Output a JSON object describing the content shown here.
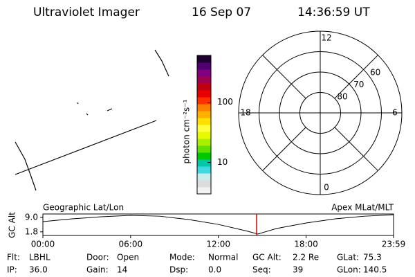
{
  "header": {
    "title": "Ultraviolet Imager",
    "date": "16 Sep 07",
    "time": "14:36:59 UT"
  },
  "colorbar": {
    "label": "photon cm⁻²s⁻¹",
    "log_scale": true,
    "lim": [
      3,
      600
    ],
    "ticks": [
      10,
      100
    ],
    "colors": [
      "#f2f2f2",
      "#dcdcdc",
      "#c8ecec",
      "#40d8e0",
      "#00c8a8",
      "#00c800",
      "#60e000",
      "#a8f000",
      "#e8f800",
      "#ffff40",
      "#ffe000",
      "#ffb000",
      "#ff8000",
      "#ff3000",
      "#e80000",
      "#c00010",
      "#a00050",
      "#800080",
      "#500070",
      "#200030"
    ]
  },
  "polar": {
    "rlim": [
      90,
      50
    ],
    "rings": [
      80,
      70,
      60,
      50
    ],
    "ring_labels": [
      {
        "value": 80,
        "label": "80"
      },
      {
        "value": 70,
        "label": "70"
      },
      {
        "value": 60,
        "label": "60"
      }
    ],
    "hours": [
      12,
      6,
      0,
      18
    ],
    "spokes": [
      0,
      3,
      6,
      9,
      12,
      15,
      18,
      21
    ]
  },
  "timeline": {
    "left_title": "Geographic Lat/Lon",
    "right_title": "Apex MLat/MLT",
    "ylabel": "GC Alt",
    "ylim": [
      0,
      10.7
    ],
    "yticks": [
      {
        "value": 9,
        "label": "9.0"
      },
      {
        "value": 1.8,
        "label": "1.8"
      }
    ],
    "xlim": [
      0,
      23.983
    ],
    "xticks": [
      {
        "value": 0,
        "label": "00:00"
      },
      {
        "value": 6,
        "label": "06:00"
      },
      {
        "value": 12,
        "label": "12:00"
      },
      {
        "value": 18,
        "label": "18:00"
      },
      {
        "value": 23.983,
        "label": "23:59"
      }
    ],
    "x": [
      0,
      2,
      4,
      6,
      8,
      10,
      12,
      14,
      14.7,
      16,
      18,
      20,
      22,
      23.983
    ],
    "values": [
      6.9,
      8.3,
      9.3,
      10,
      9.6,
      7.9,
      5.5,
      2.1,
      0.7,
      3.5,
      6.2,
      8.3,
      9.6,
      10.3
    ],
    "marker": 14.616,
    "marker_color": "#dd0000"
  },
  "footer": {
    "rows": [
      [
        [
          "Flt:",
          "LBHL"
        ],
        [
          "Door:",
          "Open"
        ],
        [
          "Mode:",
          "Normal"
        ],
        [
          "GC Alt:",
          "2.2 Re"
        ],
        [
          "GLat:",
          "75.3"
        ]
      ],
      [
        [
          "IP:",
          "36.0"
        ],
        [
          "Gain:",
          "14"
        ],
        [
          "Dsp:",
          "0.0"
        ],
        [
          "Seq:",
          "39"
        ],
        [
          "GLon:",
          "140.5"
        ]
      ]
    ]
  }
}
